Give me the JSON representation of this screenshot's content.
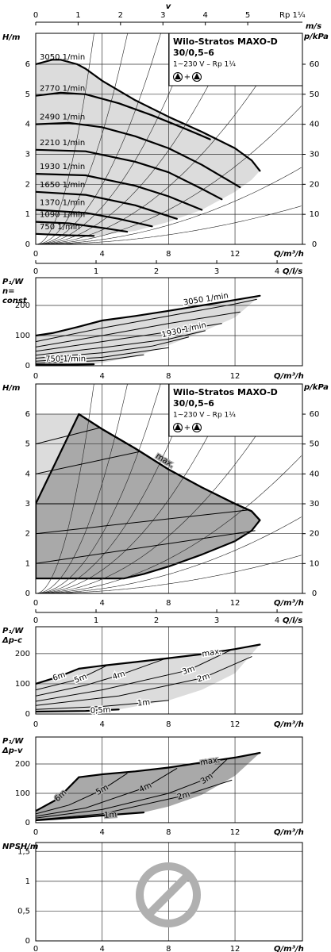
{
  "chart_data": [
    {
      "type": "line",
      "y_label": "H/m",
      "y2_label": "p/kPa",
      "x_label": "Q/m³/h",
      "x2_label": "Q/l/s",
      "top_label": "v",
      "top_unit": "m/s",
      "top_note": "Rp 1¼",
      "legend": [
        "Wilo-Stratos MAXO-D",
        "30/0,5–6",
        "1~230 V – Rp 1¼"
      ],
      "legend_plus": "+",
      "xlim": [
        0,
        16.06
      ],
      "xticks": [
        0,
        4,
        8,
        12
      ],
      "ylim": [
        0,
        7.03
      ],
      "yticks": [
        0,
        1,
        2,
        3,
        4,
        5,
        6
      ],
      "y2lim": [
        0,
        70.3
      ],
      "y2ticks": [
        0,
        10,
        20,
        30,
        40,
        50,
        60
      ],
      "x2lim": [
        0,
        4.42
      ],
      "x2ticks": [
        0,
        1,
        2,
        3,
        4
      ],
      "topxlim": [
        0,
        6.29
      ],
      "topxticks": [
        0,
        1,
        2,
        3,
        4,
        5
      ],
      "grid": true,
      "color": "#000000",
      "regions": [
        {
          "color": "#dcdcdc",
          "x": [
            0,
            1,
            1.5,
            2.5,
            3,
            4,
            6,
            8,
            10,
            12,
            13,
            13.5,
            13,
            12,
            10,
            8,
            6,
            3.5,
            2,
            0
          ],
          "y": [
            6,
            6.15,
            6.15,
            6,
            5.85,
            5.45,
            4.8,
            4.25,
            3.75,
            3.2,
            2.8,
            2.45,
            2.15,
            1.75,
            1.15,
            0.75,
            0.45,
            0.28,
            0.3,
            0.35
          ]
        }
      ],
      "system_curves": [
        0.57,
        0.23,
        0.124,
        0.078,
        0.049,
        0.03,
        0.018,
        0.01,
        0.005
      ],
      "series": [
        {
          "name": "3050 1/min",
          "thick": true,
          "x": [
            0,
            1,
            1.5,
            2.5,
            3,
            4,
            6,
            8,
            10,
            12,
            13,
            13.5
          ],
          "values": [
            6,
            6.15,
            6.15,
            6,
            5.85,
            5.45,
            4.8,
            4.25,
            3.75,
            3.2,
            2.8,
            2.45
          ]
        },
        {
          "name": "2770 1/min",
          "thick": true,
          "x": [
            0,
            1.5,
            3,
            5,
            7,
            9,
            10.5
          ],
          "values": [
            4.95,
            5.05,
            5,
            4.7,
            4.3,
            3.85,
            3.5
          ]
        },
        {
          "name": "2490 1/min",
          "thick": true,
          "x": [
            0,
            2,
            4,
            6,
            8,
            10,
            12,
            12.3
          ],
          "values": [
            4,
            4.05,
            3.9,
            3.6,
            3.2,
            2.65,
            2,
            1.9
          ]
        },
        {
          "name": "2210 1/min",
          "thick": true,
          "x": [
            0,
            3,
            6,
            8,
            10,
            11.2
          ],
          "values": [
            3.15,
            3.1,
            2.75,
            2.4,
            1.85,
            1.5
          ]
        },
        {
          "name": "1930 1/min",
          "thick": true,
          "x": [
            0,
            3,
            6,
            8,
            10
          ],
          "values": [
            2.35,
            2.3,
            1.95,
            1.6,
            1.15
          ]
        },
        {
          "name": "1650 1/min",
          "thick": true,
          "x": [
            0,
            3,
            6,
            8.5
          ],
          "values": [
            1.75,
            1.65,
            1.3,
            0.85
          ]
        },
        {
          "name": "1370 1/min",
          "thick": true,
          "x": [
            0,
            3,
            5,
            7
          ],
          "values": [
            1.15,
            1.05,
            0.85,
            0.6
          ]
        },
        {
          "name": "1090 1/min",
          "thick": true,
          "x": [
            0,
            2,
            4,
            5.5
          ],
          "values": [
            0.75,
            0.7,
            0.55,
            0.42
          ]
        },
        {
          "name": "750 1/min",
          "thick": true,
          "x": [
            0,
            2,
            3.5
          ],
          "values": [
            0.35,
            0.3,
            0.28
          ]
        }
      ]
    },
    {
      "type": "line",
      "y_label": [
        "P₁/W",
        "n=",
        "const"
      ],
      "x_label": "Q/m³/h",
      "x2_label": "Q/l/s",
      "xlim": [
        0,
        16.06
      ],
      "xticks": [
        0,
        4,
        8,
        12
      ],
      "ylim": [
        0,
        292
      ],
      "yticks": [
        0,
        100,
        200
      ],
      "x2lim": [
        0,
        4.42
      ],
      "x2ticks": [
        0,
        1,
        2,
        3,
        4
      ],
      "grid": true,
      "color": "#000000",
      "regions": [
        {
          "color": "#dcdcdc",
          "x": [
            0,
            1,
            2.5,
            4,
            6,
            8,
            10,
            12,
            13.5,
            12,
            10,
            8,
            6,
            3.5,
            0
          ],
          "y": [
            100,
            108,
            128,
            150,
            165,
            182,
            200,
            218,
            232,
            160,
            112,
            68,
            30,
            5,
            3
          ]
        }
      ],
      "series": [
        {
          "name": "3050 1/min",
          "thick": true,
          "x": [
            0,
            1,
            2.5,
            4,
            6,
            8,
            10,
            12,
            13.5
          ],
          "values": [
            100,
            108,
            128,
            150,
            165,
            182,
            200,
            218,
            232
          ]
        },
        {
          "x": [
            0,
            4,
            8,
            12,
            13.3
          ],
          "values": [
            80,
            125,
            165,
            205,
            220
          ]
        },
        {
          "x": [
            0,
            4,
            8,
            12.3
          ],
          "values": [
            62,
            100,
            140,
            178
          ]
        },
        {
          "x": [
            0,
            4,
            8,
            11.2
          ],
          "values": [
            48,
            80,
            112,
            140
          ]
        },
        {
          "name": "1930 1/min",
          "x": [
            0,
            4,
            8,
            10.2
          ],
          "values": [
            35,
            60,
            88,
            116
          ]
        },
        {
          "x": [
            0,
            4,
            7,
            9.2
          ],
          "values": [
            25,
            43,
            65,
            95
          ]
        },
        {
          "x": [
            0,
            4,
            8
          ],
          "values": [
            15,
            28,
            60
          ]
        },
        {
          "x": [
            0,
            4,
            6.5
          ],
          "values": [
            8,
            17,
            36
          ]
        },
        {
          "name": "750 1/min",
          "thick": true,
          "x": [
            0,
            2,
            3.5
          ],
          "values": [
            3,
            4,
            5
          ]
        }
      ]
    },
    {
      "type": "line",
      "y_label": "H/m",
      "y2_label": "p/kPa",
      "x_label": "Q/m³/h",
      "x2_label": "Q/l/s",
      "legend": [
        "Wilo-Stratos MAXO-D",
        "30/0,5–6",
        "1~230 V – Rp 1¼"
      ],
      "legend_plus": "+",
      "xlim": [
        0,
        16.06
      ],
      "xticks": [
        0,
        4,
        8,
        12
      ],
      "ylim": [
        0,
        7.01
      ],
      "yticks": [
        0,
        1,
        2,
        3,
        4,
        5,
        6
      ],
      "y2lim": [
        0,
        70.1
      ],
      "y2ticks": [
        0,
        10,
        20,
        30,
        40,
        50,
        60
      ],
      "x2lim": [
        0,
        4.42
      ],
      "x2ticks": [
        0,
        1,
        2,
        3,
        4
      ],
      "grid": true,
      "color": "#000000",
      "regions": [
        {
          "color": "#dcdcdc",
          "x": [
            0,
            0,
            2.6
          ],
          "y": [
            3,
            6,
            6
          ]
        },
        {
          "color": "#a9a9a9",
          "outline": true,
          "x": [
            0,
            0,
            2.6,
            4,
            6,
            8,
            10,
            12,
            13,
            13.5,
            13,
            12,
            10,
            8,
            6.5,
            5.3,
            0
          ],
          "y": [
            0.5,
            3,
            6,
            5.5,
            4.85,
            4.15,
            3.55,
            3,
            2.75,
            2.45,
            2.1,
            1.75,
            1.3,
            0.9,
            0.65,
            0.5,
            0.5
          ]
        }
      ],
      "system_curves": [
        0.57,
        0.23,
        0.124,
        0.078,
        0.049,
        0.03,
        0.018,
        0.01,
        0.005
      ],
      "series": [
        {
          "name": "max.",
          "thick": true,
          "x": [
            2.6,
            4,
            6,
            8,
            10,
            12,
            13,
            13.5
          ],
          "values": [
            6,
            5.5,
            4.85,
            4.15,
            3.55,
            3,
            2.75,
            2.45
          ]
        },
        {
          "x": [
            0,
            3.9
          ],
          "values": [
            5,
            5.55
          ]
        },
        {
          "x": [
            0,
            6.3
          ],
          "values": [
            4,
            4.75
          ]
        },
        {
          "x": [
            0,
            12.2
          ],
          "values": [
            3,
            3
          ]
        },
        {
          "x": [
            0,
            12.9
          ],
          "values": [
            2,
            2.8
          ]
        },
        {
          "x": [
            0,
            13.2
          ],
          "values": [
            1,
            2.1
          ]
        }
      ]
    },
    {
      "type": "line",
      "y_label": [
        "P₁/W",
        "Δp-c"
      ],
      "x_label": "Q/m³/h",
      "xlim": [
        0,
        16.06
      ],
      "xticks": [
        0,
        4,
        8,
        12
      ],
      "ylim": [
        0,
        289
      ],
      "yticks": [
        0,
        100,
        200
      ],
      "grid": true,
      "color": "#000000",
      "regions": [
        {
          "color": "#dcdcdc",
          "x": [
            0,
            1.3,
            2.6,
            4,
            6,
            8,
            10,
            12,
            13.5,
            12,
            10,
            8,
            5,
            3,
            0
          ],
          "y": [
            100,
            122,
            150,
            160,
            172,
            185,
            198,
            215,
            230,
            135,
            80,
            45,
            15,
            10,
            8
          ]
        }
      ],
      "series": [
        {
          "name": "6m",
          "thick": true,
          "x": [
            0,
            1.3,
            2.6
          ],
          "values": [
            100,
            122,
            150
          ]
        },
        {
          "name": "5m",
          "x": [
            0,
            2.6,
            4.3
          ],
          "values": [
            80,
            115,
            161
          ]
        },
        {
          "name": "4m",
          "x": [
            0,
            3,
            5,
            7.8
          ],
          "values": [
            60,
            95,
            128,
            183
          ]
        },
        {
          "name": "3m",
          "x": [
            0,
            4,
            9.2,
            11.8
          ],
          "values": [
            42,
            80,
            145,
            213
          ]
        },
        {
          "name": "2m",
          "x": [
            0,
            5,
            10.1,
            13
          ],
          "values": [
            28,
            60,
            120,
            190
          ]
        },
        {
          "name": "1m",
          "x": [
            0,
            4,
            6.5,
            8
          ],
          "values": [
            15,
            25,
            37,
            45
          ]
        },
        {
          "name": "0,5m",
          "thick": true,
          "x": [
            0,
            3,
            5
          ],
          "values": [
            8,
            10,
            15
          ]
        },
        {
          "name": "max.",
          "thick": true,
          "x": [
            2.6,
            4,
            6,
            8,
            10,
            12,
            13.5
          ],
          "values": [
            150,
            160,
            172,
            185,
            198,
            215,
            230
          ]
        }
      ]
    },
    {
      "type": "line",
      "y_label": [
        "P₁/W",
        "Δp-v"
      ],
      "x_label": "Q/m³/h",
      "xlim": [
        0,
        16.06
      ],
      "xticks": [
        0,
        4,
        8,
        12
      ],
      "ylim": [
        0,
        292
      ],
      "yticks": [
        0,
        100,
        200
      ],
      "grid": true,
      "color": "#000000",
      "regions": [
        {
          "color": "#a9a9a9",
          "x": [
            0,
            1.3,
            2.6,
            4,
            6,
            8,
            10,
            12,
            13.5,
            12,
            10,
            8,
            6.5,
            3,
            0
          ],
          "y": [
            40,
            80,
            155,
            165,
            175,
            188,
            205,
            222,
            238,
            160,
            95,
            55,
            35,
            20,
            8
          ]
        }
      ],
      "series": [
        {
          "name": "6m",
          "thick": true,
          "x": [
            0,
            1.3,
            2.6
          ],
          "values": [
            40,
            80,
            155
          ]
        },
        {
          "name": "5m",
          "x": [
            0,
            2,
            4,
            5.5
          ],
          "values": [
            30,
            60,
            112,
            168
          ]
        },
        {
          "name": "4m",
          "x": [
            0,
            3,
            6.6,
            8.5
          ],
          "values": [
            22,
            50,
            120,
            185
          ]
        },
        {
          "name": "3m",
          "x": [
            0,
            4,
            8,
            10.3,
            11.5
          ],
          "values": [
            16,
            45,
            100,
            150,
            215
          ]
        },
        {
          "name": "2m",
          "x": [
            0,
            4,
            8.9,
            11.8
          ],
          "values": [
            10,
            30,
            92,
            145
          ]
        },
        {
          "name": "1m",
          "thick": true,
          "x": [
            0,
            3,
            6.5
          ],
          "values": [
            8,
            20,
            35
          ]
        },
        {
          "name": "max.",
          "thick": true,
          "x": [
            2.6,
            4,
            6,
            8,
            10,
            12,
            13.5
          ],
          "values": [
            155,
            165,
            175,
            188,
            205,
            222,
            238
          ]
        }
      ]
    },
    {
      "type": "line",
      "y_label": "NPSH/m",
      "x_label": "Q/m³/h",
      "xlim": [
        0,
        16.06
      ],
      "xticks": [
        0,
        4,
        8,
        12
      ],
      "ylim": [
        0,
        1.65
      ],
      "yticks": [
        0,
        {
          "value": 0.5,
          "label": "0,5"
        },
        1,
        {
          "value": 1.5,
          "label": "1,5"
        }
      ],
      "grid": true,
      "color": "#000000",
      "series": []
    }
  ]
}
